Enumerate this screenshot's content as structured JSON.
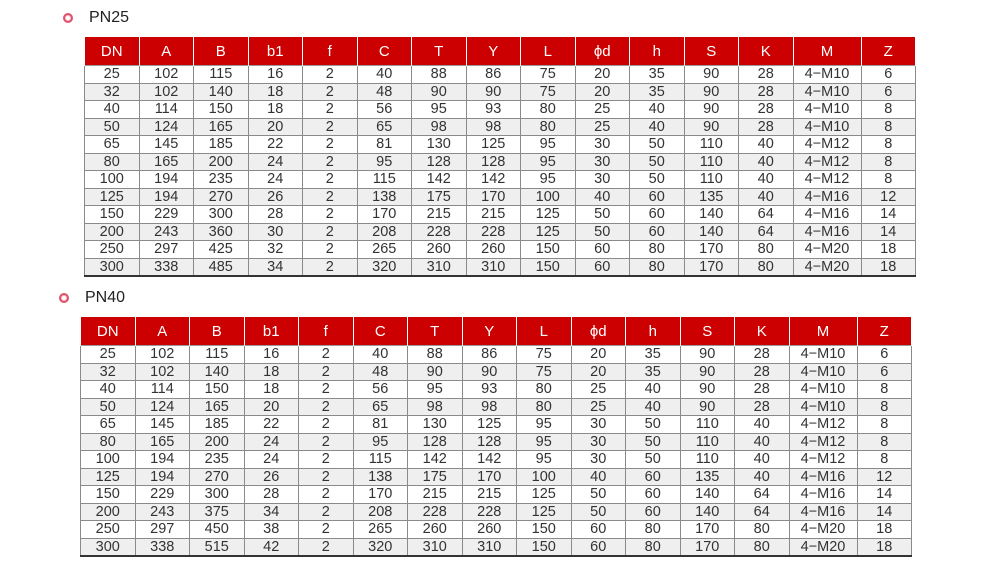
{
  "columns": [
    "DN",
    "A",
    "B",
    "b1",
    "f",
    "C",
    "T",
    "Y",
    "L",
    "ϕd",
    "h",
    "S",
    "K",
    "M",
    "Z"
  ],
  "accent_color": "#cc0000",
  "bullet_icon": "ring-bullet-icon",
  "tables": [
    {
      "title": "PN25",
      "rows": [
        [
          "25",
          "102",
          "115",
          "16",
          "2",
          "40",
          "88",
          "86",
          "75",
          "20",
          "35",
          "90",
          "28",
          "4−M10",
          "6"
        ],
        [
          "32",
          "102",
          "140",
          "18",
          "2",
          "48",
          "90",
          "90",
          "75",
          "20",
          "35",
          "90",
          "28",
          "4−M10",
          "6"
        ],
        [
          "40",
          "114",
          "150",
          "18",
          "2",
          "56",
          "95",
          "93",
          "80",
          "25",
          "40",
          "90",
          "28",
          "4−M10",
          "8"
        ],
        [
          "50",
          "124",
          "165",
          "20",
          "2",
          "65",
          "98",
          "98",
          "80",
          "25",
          "40",
          "90",
          "28",
          "4−M10",
          "8"
        ],
        [
          "65",
          "145",
          "185",
          "22",
          "2",
          "81",
          "130",
          "125",
          "95",
          "30",
          "50",
          "110",
          "40",
          "4−M12",
          "8"
        ],
        [
          "80",
          "165",
          "200",
          "24",
          "2",
          "95",
          "128",
          "128",
          "95",
          "30",
          "50",
          "110",
          "40",
          "4−M12",
          "8"
        ],
        [
          "100",
          "194",
          "235",
          "24",
          "2",
          "115",
          "142",
          "142",
          "95",
          "30",
          "50",
          "110",
          "40",
          "4−M12",
          "8"
        ],
        [
          "125",
          "194",
          "270",
          "26",
          "2",
          "138",
          "175",
          "170",
          "100",
          "40",
          "60",
          "135",
          "40",
          "4−M16",
          "12"
        ],
        [
          "150",
          "229",
          "300",
          "28",
          "2",
          "170",
          "215",
          "215",
          "125",
          "50",
          "60",
          "140",
          "64",
          "4−M16",
          "14"
        ],
        [
          "200",
          "243",
          "360",
          "30",
          "2",
          "208",
          "228",
          "228",
          "125",
          "50",
          "60",
          "140",
          "64",
          "4−M16",
          "14"
        ],
        [
          "250",
          "297",
          "425",
          "32",
          "2",
          "265",
          "260",
          "260",
          "150",
          "60",
          "80",
          "170",
          "80",
          "4−M20",
          "18"
        ],
        [
          "300",
          "338",
          "485",
          "34",
          "2",
          "320",
          "310",
          "310",
          "150",
          "60",
          "80",
          "170",
          "80",
          "4−M20",
          "18"
        ]
      ]
    },
    {
      "title": "PN40",
      "rows": [
        [
          "25",
          "102",
          "115",
          "16",
          "2",
          "40",
          "88",
          "86",
          "75",
          "20",
          "35",
          "90",
          "28",
          "4−M10",
          "6"
        ],
        [
          "32",
          "102",
          "140",
          "18",
          "2",
          "48",
          "90",
          "90",
          "75",
          "20",
          "35",
          "90",
          "28",
          "4−M10",
          "6"
        ],
        [
          "40",
          "114",
          "150",
          "18",
          "2",
          "56",
          "95",
          "93",
          "80",
          "25",
          "40",
          "90",
          "28",
          "4−M10",
          "8"
        ],
        [
          "50",
          "124",
          "165",
          "20",
          "2",
          "65",
          "98",
          "98",
          "80",
          "25",
          "40",
          "90",
          "28",
          "4−M10",
          "8"
        ],
        [
          "65",
          "145",
          "185",
          "22",
          "2",
          "81",
          "130",
          "125",
          "95",
          "30",
          "50",
          "110",
          "40",
          "4−M12",
          "8"
        ],
        [
          "80",
          "165",
          "200",
          "24",
          "2",
          "95",
          "128",
          "128",
          "95",
          "30",
          "50",
          "110",
          "40",
          "4−M12",
          "8"
        ],
        [
          "100",
          "194",
          "235",
          "24",
          "2",
          "115",
          "142",
          "142",
          "95",
          "30",
          "50",
          "110",
          "40",
          "4−M12",
          "8"
        ],
        [
          "125",
          "194",
          "270",
          "26",
          "2",
          "138",
          "175",
          "170",
          "100",
          "40",
          "60",
          "135",
          "40",
          "4−M16",
          "12"
        ],
        [
          "150",
          "229",
          "300",
          "28",
          "2",
          "170",
          "215",
          "215",
          "125",
          "50",
          "60",
          "140",
          "64",
          "4−M16",
          "14"
        ],
        [
          "200",
          "243",
          "375",
          "34",
          "2",
          "208",
          "228",
          "228",
          "125",
          "50",
          "60",
          "140",
          "64",
          "4−M16",
          "14"
        ],
        [
          "250",
          "297",
          "450",
          "38",
          "2",
          "265",
          "260",
          "260",
          "150",
          "60",
          "80",
          "170",
          "80",
          "4−M20",
          "18"
        ],
        [
          "300",
          "338",
          "515",
          "42",
          "2",
          "320",
          "310",
          "310",
          "150",
          "60",
          "80",
          "170",
          "80",
          "4−M20",
          "18"
        ]
      ]
    }
  ]
}
